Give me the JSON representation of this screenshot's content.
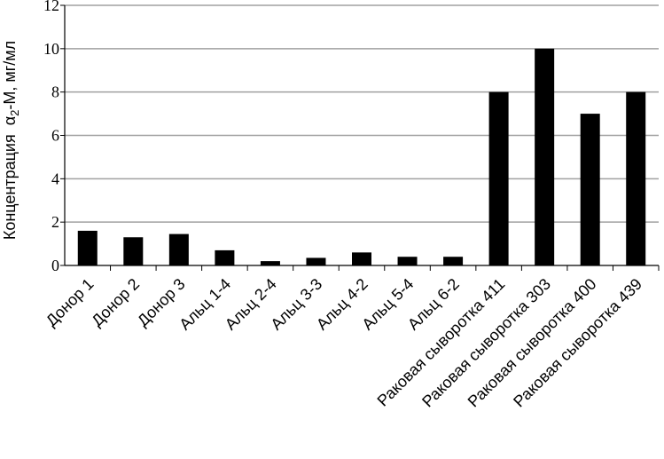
{
  "chart_data": {
    "type": "bar",
    "title": "",
    "xlabel": "",
    "ylabel": "Концентрация α2-М, мг/мл",
    "ylabel_parts": {
      "prefix": "Концентрация  α",
      "subscript": "2",
      "suffix": "-М, мг/мл"
    },
    "ylim": [
      0,
      12
    ],
    "yticks": [
      0,
      2,
      4,
      6,
      8,
      10,
      12
    ],
    "grid": true,
    "bar_color": "#000000",
    "grid_color": "#a0a0a0",
    "categories": [
      "Донор 1",
      "Донор 2",
      "Донор 3",
      "Альц 1-4",
      "Альц 2-4",
      "Альц 3-3",
      "Альц 4-2",
      "Альц 5-4",
      "Альц 6-2",
      "Раковая сыворотка 411",
      "Раковая сыворотка 303",
      "Раковая сыворотка 400",
      "Раковая сыворотка 439"
    ],
    "values": [
      1.6,
      1.3,
      1.45,
      0.7,
      0.2,
      0.35,
      0.6,
      0.4,
      0.4,
      8,
      10,
      7,
      8
    ]
  }
}
